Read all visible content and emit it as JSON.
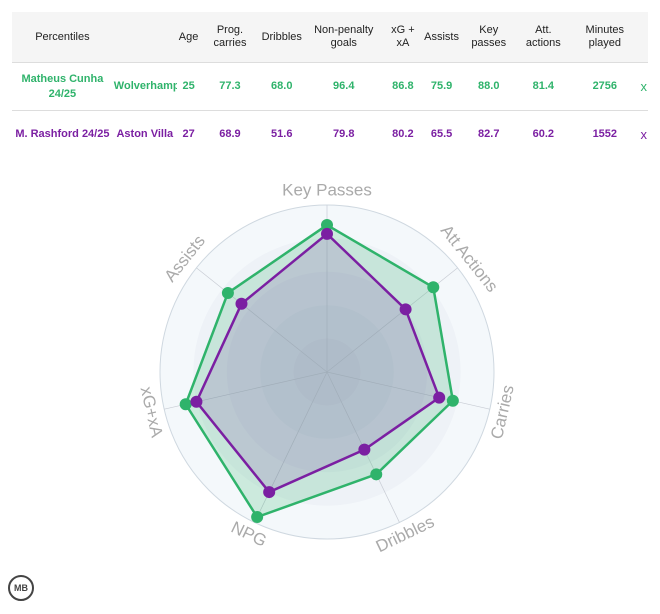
{
  "table": {
    "headers": [
      "Percentiles",
      "",
      "Age",
      "Prog. carries",
      "Dribbles",
      "Non-penalty goals",
      "xG + xA",
      "Assists",
      "Key passes",
      "Att. actions",
      "Minutes played",
      ""
    ],
    "rows": [
      {
        "player": "Matheus Cunha 24/25",
        "club": "Wolverhampton",
        "age": "25",
        "prog_carries": "77.3",
        "dribbles": "68.0",
        "npg": "96.4",
        "xg_xa": "86.8",
        "assists": "75.9",
        "key_passes": "88.0",
        "att_actions": "81.4",
        "minutes": "2756",
        "remove": "x",
        "color": "#2fb36b"
      },
      {
        "player": "M. Rashford 24/25",
        "club": "Aston Villa",
        "age": "27",
        "prog_carries": "68.9",
        "dribbles": "51.6",
        "npg": "79.8",
        "xg_xa": "80.2",
        "assists": "65.5",
        "key_passes": "82.7",
        "att_actions": "60.2",
        "minutes": "1552",
        "remove": "x",
        "color": "#7b1fa2"
      }
    ]
  },
  "chart_data": {
    "type": "radar",
    "axes": [
      "Key Passes",
      "Att Actions",
      "Carries",
      "Dribbles",
      "NPG",
      "xG+xA",
      "Assists"
    ],
    "range": [
      0,
      100
    ],
    "series": [
      {
        "name": "Matheus Cunha 24/25",
        "color": "#2fb36b",
        "values": [
          88.0,
          81.4,
          77.3,
          68.0,
          96.4,
          86.8,
          75.9
        ]
      },
      {
        "name": "M. Rashford 24/25",
        "color": "#7b1fa2",
        "values": [
          82.7,
          60.2,
          68.9,
          51.6,
          79.8,
          80.2,
          65.5
        ]
      }
    ]
  },
  "logo": "MB"
}
